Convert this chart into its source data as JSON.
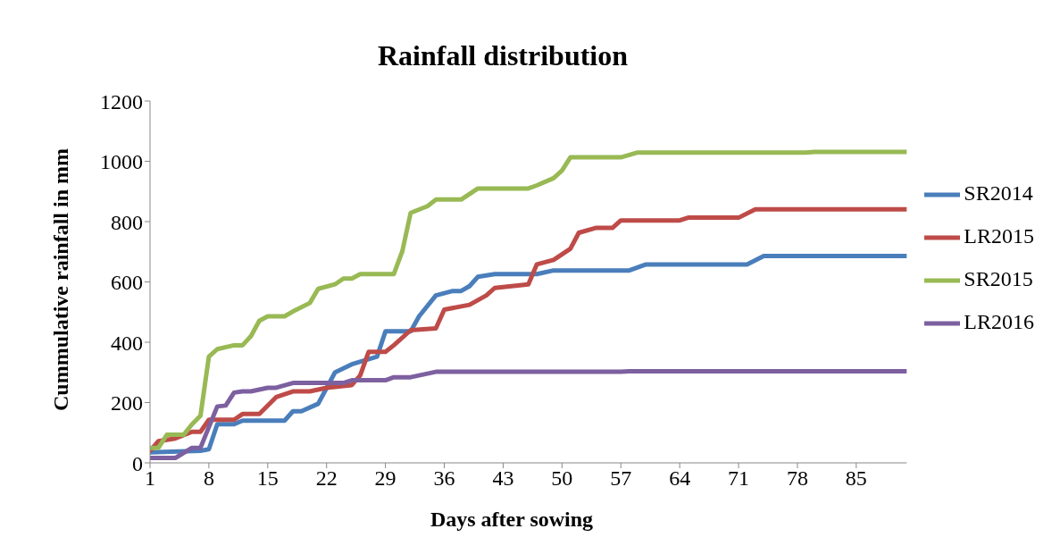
{
  "chart_data": {
    "type": "line",
    "title": "Rainfall distribution",
    "xlabel": "Days after sowing",
    "ylabel": "Cummulative rainfall in mm",
    "xlim": [
      1,
      91
    ],
    "xticks": [
      1,
      8,
      15,
      22,
      29,
      36,
      43,
      50,
      57,
      64,
      71,
      78,
      85
    ],
    "ylim": [
      0,
      1200
    ],
    "yticks": [
      0,
      200,
      400,
      600,
      800,
      1000,
      1200
    ],
    "grid": false,
    "legend": "right",
    "marker": "none",
    "line_style": "solid",
    "series": [
      {
        "name": "SR2014",
        "color": "#4a7ebb",
        "x": [
          1,
          7,
          8,
          9,
          11,
          12,
          17,
          18,
          19,
          21,
          23,
          25,
          28,
          29,
          32,
          33,
          35,
          37,
          38,
          39,
          40,
          42,
          47,
          49,
          58,
          60,
          72,
          74,
          91
        ],
        "values": [
          35,
          40,
          45,
          128,
          128,
          140,
          140,
          171,
          171,
          196,
          300,
          327,
          352,
          436,
          436,
          486,
          555,
          570,
          570,
          586,
          617,
          626,
          626,
          638,
          638,
          658,
          658,
          686,
          686
        ]
      },
      {
        "name": "LR2015",
        "color": "#be4b48",
        "x": [
          1,
          2,
          4,
          6,
          7,
          8,
          11,
          12,
          14,
          16,
          18,
          20,
          22,
          25,
          26,
          27,
          29,
          30,
          32,
          35,
          36,
          39,
          41,
          42,
          46,
          47,
          49,
          51,
          52,
          54,
          56,
          57,
          64,
          65,
          71,
          73,
          91
        ],
        "values": [
          40,
          72,
          81,
          103,
          103,
          143,
          143,
          162,
          162,
          218,
          237,
          237,
          249,
          258,
          290,
          368,
          368,
          390,
          440,
          446,
          508,
          524,
          555,
          580,
          592,
          658,
          673,
          710,
          763,
          779,
          779,
          804,
          804,
          813,
          813,
          841,
          841
        ]
      },
      {
        "name": "SR2015",
        "color": "#98b954",
        "x": [
          1,
          2,
          3,
          5,
          6,
          7,
          8,
          9,
          11,
          12,
          13,
          14,
          15,
          17,
          18,
          20,
          21,
          23,
          24,
          25,
          26,
          30,
          31,
          32,
          34,
          35,
          38,
          40,
          46,
          47,
          49,
          50,
          51,
          57,
          59,
          79,
          80,
          91
        ],
        "values": [
          50,
          50,
          93,
          93,
          128,
          156,
          352,
          377,
          390,
          390,
          420,
          471,
          486,
          486,
          502,
          530,
          577,
          592,
          611,
          611,
          626,
          626,
          701,
          829,
          851,
          873,
          873,
          910,
          910,
          920,
          944,
          969,
          1013,
          1013,
          1029,
          1029,
          1031,
          1031
        ]
      },
      {
        "name": "LR2016",
        "color": "#7d60a0",
        "x": [
          1,
          4,
          6,
          7,
          9,
          10,
          11,
          12,
          13,
          15,
          16,
          18,
          24,
          25,
          29,
          30,
          32,
          34,
          35,
          57,
          58,
          91
        ],
        "values": [
          16,
          16,
          50,
          50,
          187,
          190,
          233,
          237,
          237,
          249,
          249,
          265,
          265,
          274,
          274,
          284,
          284,
          296,
          302,
          302,
          304,
          304
        ]
      }
    ]
  }
}
